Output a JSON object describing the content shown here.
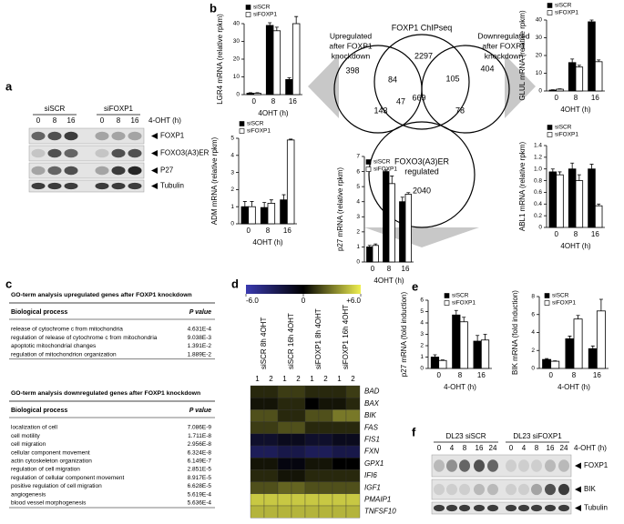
{
  "panel_labels": [
    "a",
    "b",
    "c",
    "d",
    "e",
    "f"
  ],
  "blot_a": {
    "groups": [
      "siSCR",
      "siFOXP1"
    ],
    "lanes": [
      "0",
      "8",
      "16",
      "0",
      "8",
      "16"
    ],
    "treatment": "4-OHT (h)",
    "proteins": [
      "FOXP1",
      "FOXO3(A3)ER",
      "P27",
      "Tubulin"
    ]
  },
  "venn": {
    "sets": [
      "FOXP1 ChIPseq",
      [
        "FOXO3(A3)ER",
        "regulated"
      ]
    ],
    "arrows": [
      [
        "Upregulated",
        "after FOXP1",
        "knockdown"
      ],
      [
        "Downregulated",
        "after FOXP1",
        "knockdown"
      ]
    ],
    "counts": [
      398,
      2297,
      404,
      84,
      669,
      105,
      47,
      143,
      78,
      2040
    ]
  },
  "chart_data": [
    {
      "type": "bar",
      "ylabel": "LGR4 mRNA (relative rpkm)",
      "xlabel": "4OHT (h)",
      "categories": [
        "0",
        "8",
        "16"
      ],
      "ylim": [
        0,
        40
      ],
      "yticks": [
        0,
        10,
        20,
        30,
        40
      ],
      "series": [
        {
          "name": "siSCR",
          "color": "#000000",
          "values": [
            0.8,
            39,
            8.5
          ],
          "errors": [
            0.3,
            1.5,
            1
          ]
        },
        {
          "name": "siFOXP1",
          "color": "#ffffff",
          "values": [
            0.8,
            36,
            40
          ],
          "errors": [
            0.3,
            2,
            4
          ]
        }
      ]
    },
    {
      "type": "bar",
      "ylabel": "GLUL mRNA (relative rpkm)",
      "xlabel": "4OHT (h)",
      "categories": [
        "0",
        "8",
        "16"
      ],
      "ylim": [
        0,
        40
      ],
      "yticks": [
        0,
        10,
        20,
        30,
        40
      ],
      "series": [
        {
          "name": "siSCR",
          "color": "#000000",
          "values": [
            0.5,
            16,
            39
          ],
          "errors": [
            0.2,
            2,
            1
          ]
        },
        {
          "name": "siFOXP1",
          "color": "#ffffff",
          "values": [
            1,
            13.5,
            16.5
          ],
          "errors": [
            0.2,
            1,
            1
          ]
        }
      ]
    },
    {
      "type": "bar",
      "ylabel": "ADM mRNA (relative rpkm)",
      "xlabel": "4OHT (h)",
      "categories": [
        "0",
        "8",
        "16"
      ],
      "ylim": [
        0,
        5
      ],
      "yticks": [
        0,
        1,
        2,
        3,
        4,
        5
      ],
      "series": [
        {
          "name": "siSCR",
          "color": "#000000",
          "values": [
            1,
            0.95,
            1.4
          ],
          "errors": [
            0.3,
            0.3,
            0.3
          ]
        },
        {
          "name": "siFOXP1",
          "color": "#ffffff",
          "values": [
            1,
            1.2,
            4.9
          ],
          "errors": [
            0.3,
            0.2,
            0.05
          ]
        }
      ]
    },
    {
      "type": "bar",
      "ylabel": "p27 mRNA (relative rpkm)",
      "xlabel": "4OHT (h)",
      "categories": [
        "0",
        "8",
        "16"
      ],
      "ylim": [
        0,
        7
      ],
      "yticks": [
        0,
        1,
        2,
        3,
        4,
        5,
        6,
        7
      ],
      "series": [
        {
          "name": "siSCR",
          "color": "#000000",
          "values": [
            1,
            6,
            4
          ],
          "errors": [
            0.1,
            0.1,
            0.3
          ]
        },
        {
          "name": "siFOXP1",
          "color": "#ffffff",
          "values": [
            1.1,
            5.2,
            4.5
          ],
          "errors": [
            0.1,
            0.5,
            0.1
          ]
        }
      ]
    },
    {
      "type": "bar",
      "ylabel": "ABL1 mRNA (relative rpkm)",
      "xlabel": "4OHT (h)",
      "categories": [
        "0",
        "8",
        "16"
      ],
      "ylim": [
        0,
        1.4
      ],
      "yticks": [
        0,
        0.2,
        0.4,
        0.6,
        0.8,
        {
          "value": 1,
          "label": "1.0"
        },
        1.2,
        1.4
      ],
      "series": [
        {
          "name": "siSCR",
          "color": "#000000",
          "values": [
            0.95,
            1,
            1
          ],
          "errors": [
            0.05,
            0.1,
            0.08
          ]
        },
        {
          "name": "siFOXP1",
          "color": "#ffffff",
          "values": [
            0.9,
            0.8,
            0.37
          ],
          "errors": [
            0.05,
            0.1,
            0.03
          ]
        }
      ]
    },
    {
      "type": "bar",
      "ylabel": "p27 mRNA (fold induction)",
      "xlabel": "4-OHT (h)",
      "categories": [
        "0",
        "8",
        "16"
      ],
      "ylim": [
        0,
        6
      ],
      "yticks": [
        0,
        1,
        2,
        3,
        4,
        5,
        6
      ],
      "series": [
        {
          "name": "siSCR",
          "color": "#000000",
          "values": [
            1,
            4.7,
            2.4
          ],
          "errors": [
            0.2,
            0.4,
            0.5
          ]
        },
        {
          "name": "siFOXP1",
          "color": "#ffffff",
          "values": [
            0.7,
            4.1,
            2.5
          ],
          "errors": [
            0.05,
            0.4,
            0.5
          ]
        }
      ]
    },
    {
      "type": "bar",
      "ylabel": "BIK mRNA (fold induction)",
      "xlabel": "4-OHT (h)",
      "categories": [
        "0",
        "8",
        "16"
      ],
      "ylim": [
        0,
        8
      ],
      "yticks": [
        0,
        2,
        4,
        6,
        8
      ],
      "series": [
        {
          "name": "siSCR",
          "color": "#000000",
          "values": [
            1,
            3.3,
            2.2
          ],
          "errors": [
            0.1,
            0.3,
            0.3
          ]
        },
        {
          "name": "siFOXP1",
          "color": "#ffffff",
          "values": [
            0.8,
            5.5,
            6.4
          ],
          "errors": [
            0.05,
            0.4,
            1.3
          ]
        }
      ]
    }
  ],
  "go_tables": [
    {
      "title": "GO-term analysis upregulated genes after FOXP1 knockdown",
      "header": [
        "Biological process",
        "P value"
      ],
      "rows": [
        [
          "release of cytochrome c from mitochondria",
          "4.631E-4"
        ],
        [
          "regulation of release of cytochrome c from mitochondria",
          "9.038E-3"
        ],
        [
          "apoptotic mitochondrial changes",
          "1.391E-2"
        ],
        [
          "regulation of mitochondrion organization",
          "1.889E-2"
        ]
      ]
    },
    {
      "title": "GO-term analysis downregulated genes after FOXP1 knockdown",
      "header": [
        "Biological process",
        "P value"
      ],
      "rows": [
        [
          "localization of cell",
          "7.086E-9"
        ],
        [
          "cell motility",
          "1.711E-8"
        ],
        [
          "cell migration",
          "2.956E-8"
        ],
        [
          "cellular component movement",
          "6.324E-8"
        ],
        [
          "actin cytoskeleton organization",
          "6.149E-7"
        ],
        [
          "regulation of cell migration",
          "2.851E-5"
        ],
        [
          "regulation of cellular component movement",
          "8.917E-5"
        ],
        [
          "positive regulation of cell migration",
          "6.628E-5"
        ],
        [
          "angiogenesis",
          "5.619E-4"
        ],
        [
          "blood vessel morphogenesis",
          "5.636E-4"
        ]
      ]
    }
  ],
  "heatmap": {
    "scale": [
      {
        "value": -6,
        "label": "-6.0"
      },
      0,
      {
        "value": 6,
        "label": "+6.0"
      }
    ],
    "columns": [
      "siSCR 8h 4OHT",
      "siSCR 16h 4OHT",
      "siFOXP1 8h 4OHT",
      "siFOXP1 16h 4OHT"
    ],
    "replicates": [
      "1",
      "2"
    ],
    "genes": [
      "BAD",
      "BAX",
      "BIK",
      "FAS",
      "FIS1",
      "FXN",
      "GPX1",
      "IFI6",
      "IGF1",
      "PMAIP1",
      "TNFSF10"
    ],
    "values": [
      [
        1,
        1,
        1.5,
        1.5,
        1,
        1,
        1,
        1.5
      ],
      [
        0.5,
        0.5,
        1,
        1,
        0,
        0.5,
        0.5,
        1
      ],
      [
        2,
        2,
        1,
        1,
        2,
        2,
        3,
        3
      ],
      [
        1.5,
        1.5,
        2,
        2,
        1,
        1,
        1,
        1
      ],
      [
        -1.5,
        -1.5,
        -1,
        -1,
        -1.5,
        -1.5,
        -1,
        -1
      ],
      [
        -3,
        -3,
        -2.5,
        -2.5,
        -3,
        -3,
        -2.5,
        -2.5
      ],
      [
        0.5,
        0.5,
        -0.5,
        -0.5,
        0.5,
        0.5,
        0,
        0
      ],
      [
        1,
        1,
        0.5,
        0.5,
        1,
        1,
        1,
        1
      ],
      [
        2,
        2,
        2.5,
        2.5,
        2,
        2,
        2,
        2
      ],
      [
        5,
        5,
        5,
        5,
        5,
        5,
        5,
        5
      ],
      [
        4.5,
        4.5,
        4.5,
        4.5,
        4.5,
        4.5,
        4.5,
        4.5
      ]
    ]
  },
  "blot_f": {
    "groups": [
      "DL23 siSCR",
      "DL23 siFOXP1"
    ],
    "lanes": [
      "0",
      "4",
      "8",
      "16",
      "24",
      "0",
      "4",
      "8",
      "16",
      "24"
    ],
    "treatment": "4-OHT (h)",
    "proteins": [
      "FOXP1",
      "BIK",
      "Tubulin"
    ]
  }
}
